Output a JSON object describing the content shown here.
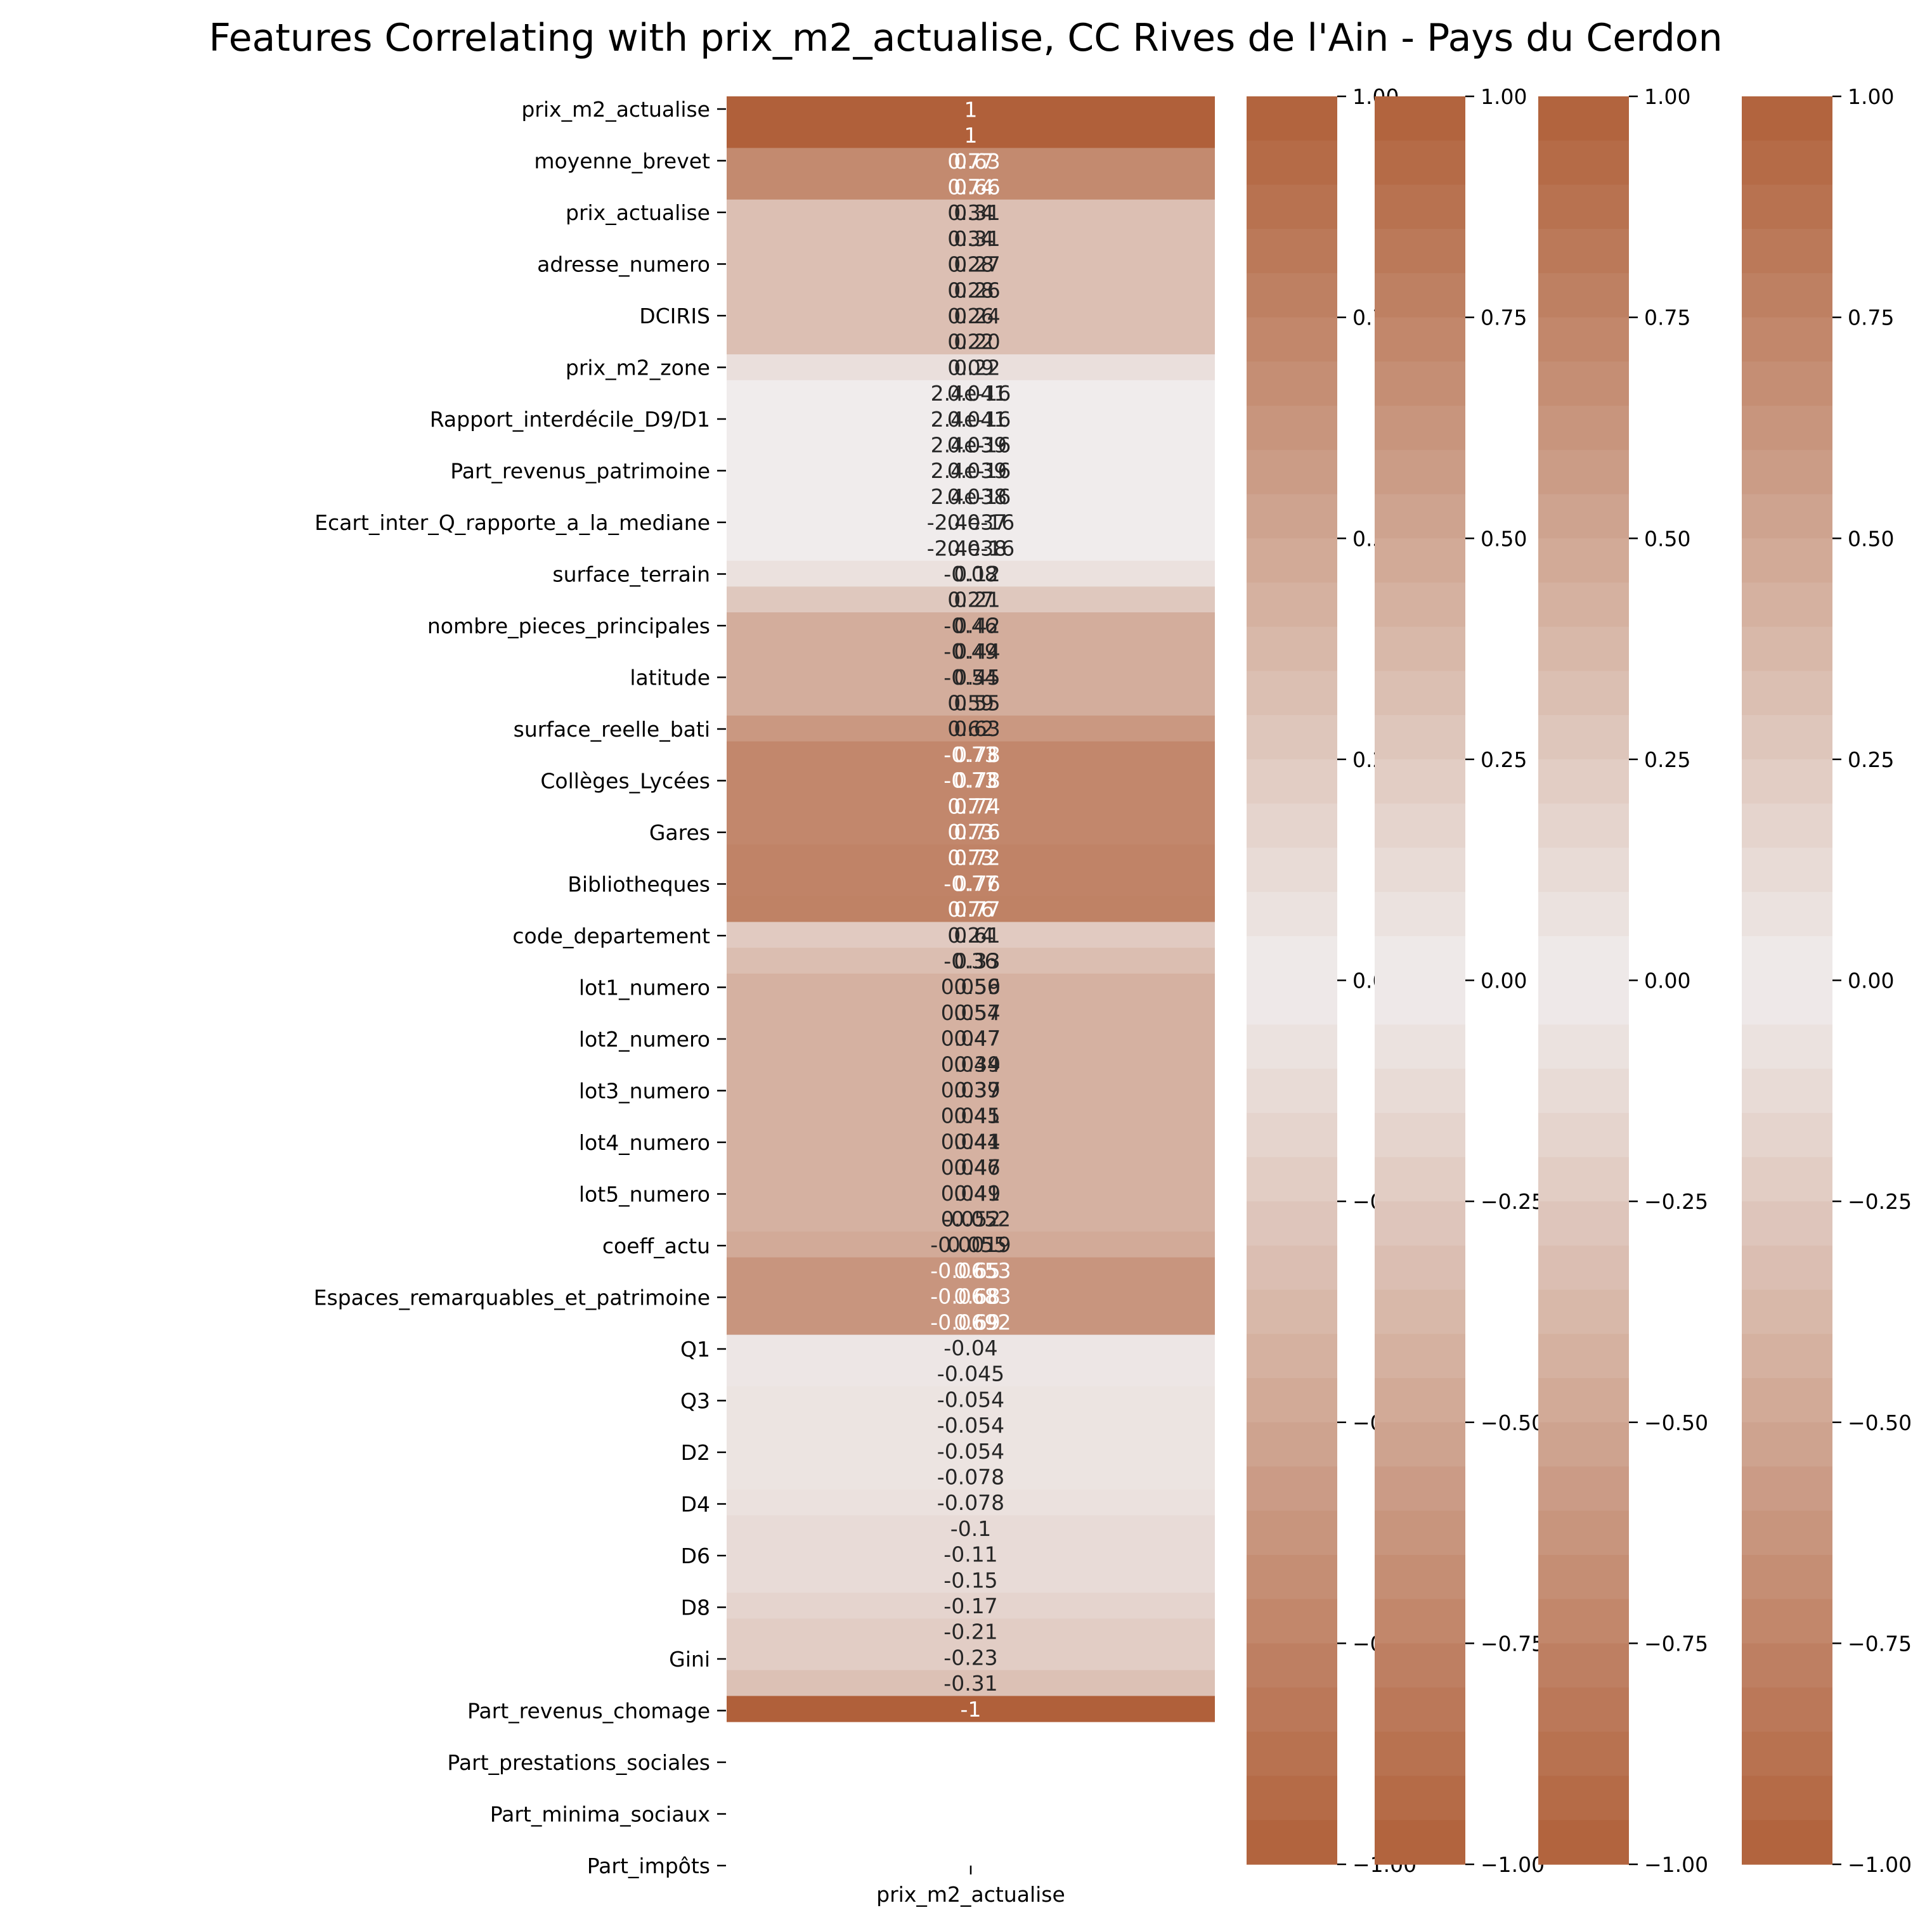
{
  "chart_data": {
    "type": "heatmap",
    "title": "Features Correlating with prix_m2_actualise, CC Rives de l'Ain - Pays du Cerdon",
    "xlabel": "prix_m2_actualise",
    "ylabel": "",
    "value_range": [
      -1,
      1
    ],
    "color_low": "#b0603a",
    "color_mid": "#f0ecec",
    "color_high": "#b0603a",
    "colorbar_ticks": [
      "1.00",
      "0.75",
      "0.50",
      "0.25",
      "0.00",
      "−0.25",
      "−0.50",
      "−0.75",
      "−1.00"
    ],
    "colorbar_count": 4,
    "y_tick_labels": [
      "prix_m2_actualise",
      "moyenne_brevet",
      "prix_actualise",
      "adresse_numero",
      "DCIRIS",
      "prix_m2_zone",
      "Rapport_interdécile_D9/D1",
      "Part_revenus_patrimoine",
      "Ecart_inter_Q_rapporte_a_la_mediane",
      "surface_terrain",
      "nombre_pieces_principales",
      "latitude",
      "surface_reelle_bati",
      "Collèges_Lycées",
      "Gares",
      "Bibliotheques",
      "code_departement",
      "lot1_numero",
      "lot2_numero",
      "lot3_numero",
      "lot4_numero",
      "lot5_numero",
      "coeff_actu",
      "Espaces_remarquables_et_patrimoine",
      "Q1",
      "Q3",
      "D2",
      "D4",
      "D6",
      "D8",
      "Gini",
      "Part_revenus_chomage",
      "Part_prestations_sociales",
      "Part_minima_sociaux",
      "Part_impôts"
    ],
    "y_tick_count": 35,
    "blocks": [
      {
        "rows": [
          0,
          2
        ],
        "value": 1.0,
        "labels": [
          [
            "1"
          ],
          [
            "1"
          ]
        ]
      },
      {
        "rows": [
          2,
          4
        ],
        "value": 0.7,
        "labels": [
          [
            "0.77",
            "0.63"
          ],
          [
            "0.74",
            "0.66"
          ]
        ]
      },
      {
        "rows": [
          4,
          10
        ],
        "value": 0.32,
        "labels": [
          [
            "0.34",
            "0.31"
          ],
          [
            "0.34",
            "0.31"
          ],
          [
            "0.28",
            "0.27"
          ],
          [
            "0.28",
            "0.26"
          ],
          [
            "0.26",
            "0.24"
          ],
          [
            "0.22",
            "0.20"
          ]
        ]
      },
      {
        "rows": [
          10,
          11
        ],
        "value": 0.09,
        "labels": [
          [
            "0.09",
            "0.22"
          ]
        ]
      },
      {
        "rows": [
          11,
          18
        ],
        "value": 0.0,
        "labels": [
          [
            "2.4e-16",
            "0.041"
          ],
          [
            "2.4e-16",
            "0.041"
          ],
          [
            "2.4e-16",
            "0.039"
          ],
          [
            "2.4e-16",
            "0.039"
          ],
          [
            "2.4e-16",
            "0.038"
          ],
          [
            "-2.4e-16",
            "0.037"
          ],
          [
            "-2.4e-16",
            "0.038"
          ]
        ]
      },
      {
        "rows": [
          18,
          19
        ],
        "value": 0.08,
        "labels": [
          [
            "-0.08",
            "0.12"
          ]
        ]
      },
      {
        "rows": [
          19,
          20
        ],
        "value": 0.26,
        "labels": [
          [
            "0.27",
            "0.21"
          ]
        ]
      },
      {
        "rows": [
          20,
          24
        ],
        "value": 0.45,
        "labels": [
          [
            "-0.46",
            "0.42"
          ],
          [
            "-0.49",
            "0.44"
          ],
          [
            "-0.54",
            "0.45"
          ],
          [
            "0.59",
            "0.55"
          ]
        ]
      },
      {
        "rows": [
          24,
          25
        ],
        "value": 0.6,
        "labels": [
          [
            "0.62",
            "0.63"
          ]
        ]
      },
      {
        "rows": [
          25,
          29
        ],
        "value": 0.72,
        "labels": [
          [
            "-0.73",
            "0.78"
          ],
          [
            "-0.73",
            "0.78"
          ],
          [
            "0.77",
            "0.74"
          ],
          [
            "0.73",
            "0.76"
          ]
        ]
      },
      {
        "rows": [
          29,
          31
        ],
        "value": 0.75,
        "labels": [
          [
            "0.73",
            "0.72"
          ],
          [
            "-0.77",
            "0.76"
          ]
        ]
      },
      {
        "rows": [
          31,
          32
        ],
        "value": 0.76,
        "labels": [
          [
            "0.76",
            "0.77"
          ]
        ]
      },
      {
        "rows": [
          32,
          33
        ],
        "value": 0.24,
        "labels": [
          [
            "0.24",
            "0.61"
          ]
        ]
      },
      {
        "rows": [
          33,
          34
        ],
        "value": 0.33,
        "labels": [
          [
            "-0.36",
            "0.33"
          ]
        ]
      },
      {
        "rows": [
          34,
          44
        ],
        "value": 0.42,
        "labels": [
          [
            "0.059",
            "0.56"
          ],
          [
            "0.057",
            "0.54"
          ],
          [
            "0.047",
            "0.47"
          ],
          [
            "0.039",
            "0.44"
          ],
          [
            "0.037",
            "0.39"
          ],
          [
            "0.041",
            "0.45"
          ],
          [
            "0.041",
            "0.44"
          ],
          [
            "0.047",
            "0.46"
          ],
          [
            "0.049",
            "0.41"
          ],
          [
            "0.052",
            "-0.052"
          ]
        ]
      },
      {
        "rows": [
          44,
          45
        ],
        "value": 0.47,
        "labels": [
          [
            "-0.0019",
            "0.055"
          ]
        ]
      },
      {
        "rows": [
          45,
          48
        ],
        "value": 0.62,
        "labels": [
          [
            "-0.0653",
            "0.65"
          ],
          [
            "-0.0683",
            "0.68"
          ],
          [
            "-0.0692",
            "0.69"
          ]
        ]
      },
      {
        "rows": [
          48,
          50
        ],
        "value": -0.04,
        "labels": [
          [
            "-0.04"
          ],
          [
            "-0.045"
          ]
        ]
      },
      {
        "rows": [
          50,
          54
        ],
        "value": -0.06,
        "labels": [
          [
            "-0.054"
          ],
          [
            "-0.054"
          ],
          [
            "-0.054"
          ],
          [
            "-0.078"
          ]
        ]
      },
      {
        "rows": [
          54,
          55
        ],
        "value": -0.08,
        "labels": [
          [
            "-0.078"
          ]
        ]
      },
      {
        "rows": [
          55,
          58
        ],
        "value": -0.12,
        "labels": [
          [
            "-0.1"
          ],
          [
            "-0.11"
          ],
          [
            "-0.15"
          ]
        ]
      },
      {
        "rows": [
          58,
          59
        ],
        "value": -0.17,
        "labels": [
          [
            "-0.17"
          ]
        ]
      },
      {
        "rows": [
          59,
          61
        ],
        "value": -0.22,
        "labels": [
          [
            "-0.21"
          ],
          [
            "-0.23"
          ]
        ]
      },
      {
        "rows": [
          61,
          62
        ],
        "value": -0.31,
        "labels": [
          [
            "-0.31"
          ]
        ]
      },
      {
        "rows": [
          62,
          63
        ],
        "value": -1.0,
        "labels": [
          [
            "-1"
          ]
        ]
      }
    ],
    "n_half_rows": 63,
    "legend": "none",
    "grid": false
  }
}
